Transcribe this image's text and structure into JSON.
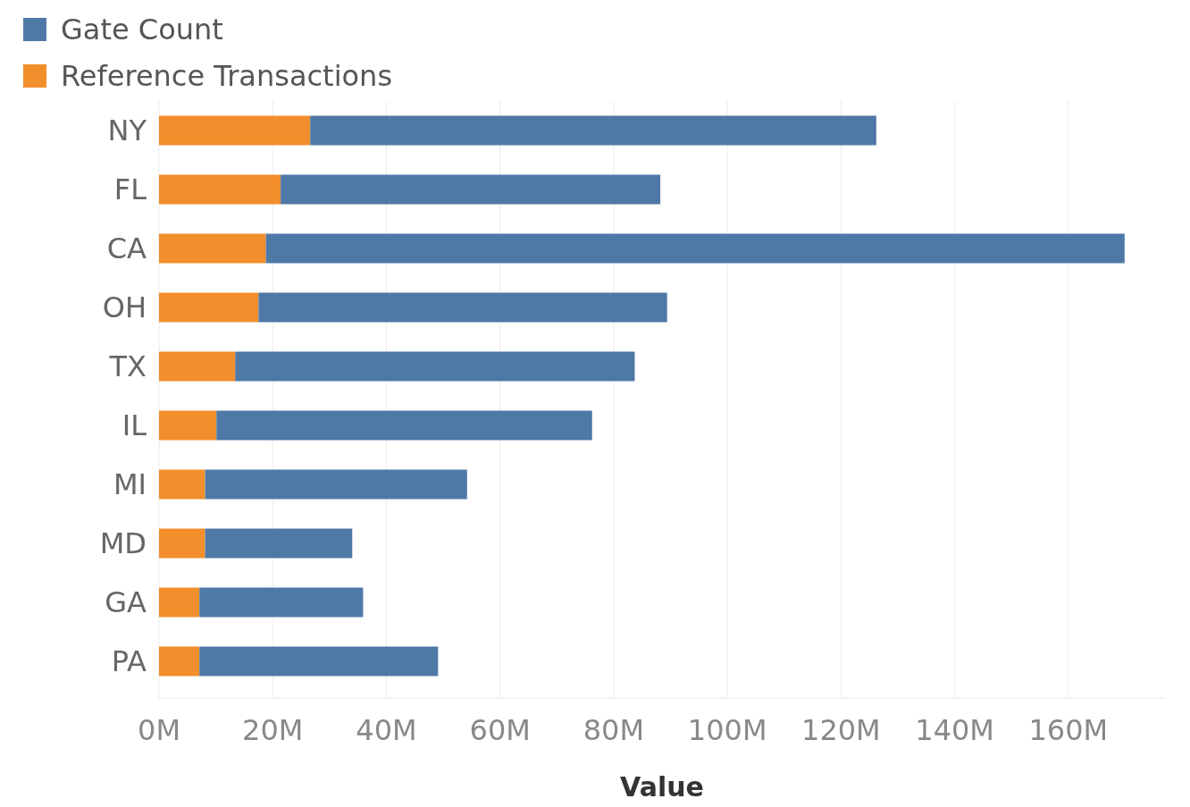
{
  "chart_data": {
    "type": "bar",
    "orientation": "horizontal",
    "stacked": true,
    "xlabel": "Value",
    "categories": [
      "NY",
      "FL",
      "CA",
      "OH",
      "TX",
      "IL",
      "MI",
      "MD",
      "GA",
      "PA"
    ],
    "series": [
      {
        "name": "Reference Transactions",
        "color": "#f28e2b",
        "values": [
          26.6,
          21.4,
          18.8,
          17.5,
          13.4,
          10.1,
          8.1,
          8.1,
          7.1,
          7.1
        ]
      },
      {
        "name": "Gate Count",
        "color": "#4e79a7",
        "values": [
          99.6,
          66.8,
          151.1,
          71.9,
          70.3,
          66.1,
          46.1,
          25.9,
          28.8,
          42.0
        ]
      }
    ],
    "xlim": [
      0,
      177
    ],
    "xticks": [
      {
        "value": 0,
        "label": "0M"
      },
      {
        "value": 20,
        "label": "20M"
      },
      {
        "value": 40,
        "label": "40M"
      },
      {
        "value": 60,
        "label": "60M"
      },
      {
        "value": 80,
        "label": "80M"
      },
      {
        "value": 100,
        "label": "100M"
      },
      {
        "value": 120,
        "label": "120M"
      },
      {
        "value": 140,
        "label": "140M"
      },
      {
        "value": 160,
        "label": "160M"
      }
    ],
    "grid": "x",
    "legend": "top left"
  }
}
